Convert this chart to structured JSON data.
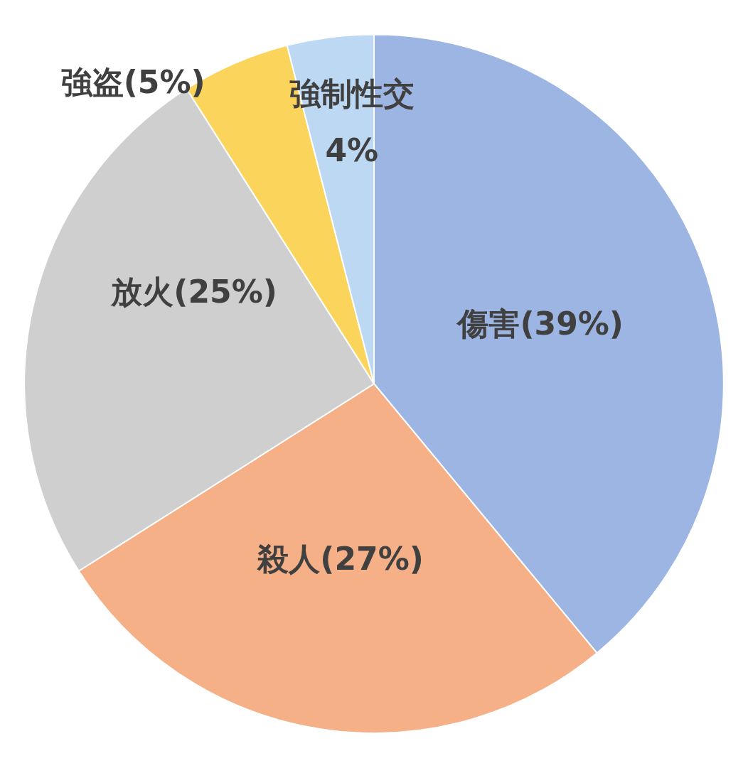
{
  "chart_data": {
    "type": "pie",
    "categories": [
      "傷害",
      "殺人",
      "放火",
      "強盗",
      "強制性交"
    ],
    "values": [
      39,
      27,
      25,
      5,
      4
    ],
    "colors": [
      "#9db5e3",
      "#f5b088",
      "#cfcfcf",
      "#fbd55b",
      "#bcd8f2"
    ],
    "value_labels": [
      "(39%)",
      "(27%)",
      "(25%)",
      "(5%)",
      "4%"
    ]
  }
}
